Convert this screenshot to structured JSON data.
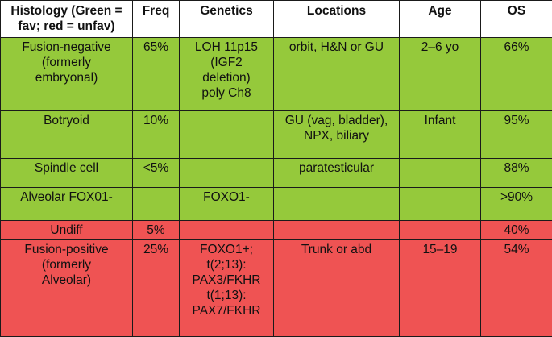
{
  "headers": [
    "Histology (Green =\nfav; red = unfav)",
    "Freq",
    "Genetics",
    "Locations",
    "Age",
    "OS"
  ],
  "colors": {
    "fav": "#95c93b",
    "unfav": "#ef5353"
  },
  "rows": [
    {
      "status": "fav",
      "cells": [
        "Fusion-negative\n(formerly\nembryonal)",
        "65%",
        "LOH 11p15\n(IGF2\ndeletion)\npoly Ch8",
        "orbit, H&N or GU",
        "2–6 yo",
        "66%"
      ]
    },
    {
      "status": "fav",
      "cells": [
        "Botryoid",
        "10%",
        "",
        "GU (vag, bladder),\nNPX, biliary",
        "Infant",
        "95%"
      ]
    },
    {
      "status": "fav",
      "cells": [
        "Spindle cell",
        "<5%",
        "",
        "paratesticular",
        "",
        "88%"
      ]
    },
    {
      "status": "fav",
      "cells": [
        "Alveolar FOX01-",
        "",
        "FOXO1-",
        "",
        "",
        ">90%"
      ]
    },
    {
      "status": "unfav",
      "cells": [
        "Undiff",
        "5%",
        "",
        "",
        "",
        "40%"
      ]
    },
    {
      "status": "unfav",
      "cells": [
        "Fusion-positive\n(formerly\nAlveolar)",
        "25%",
        "FOXO1+;\nt(2;13):\nPAX3/FKHR\nt(1;13):\nPAX7/FKHR",
        "Trunk or abd",
        "15–19",
        "54%"
      ]
    }
  ]
}
